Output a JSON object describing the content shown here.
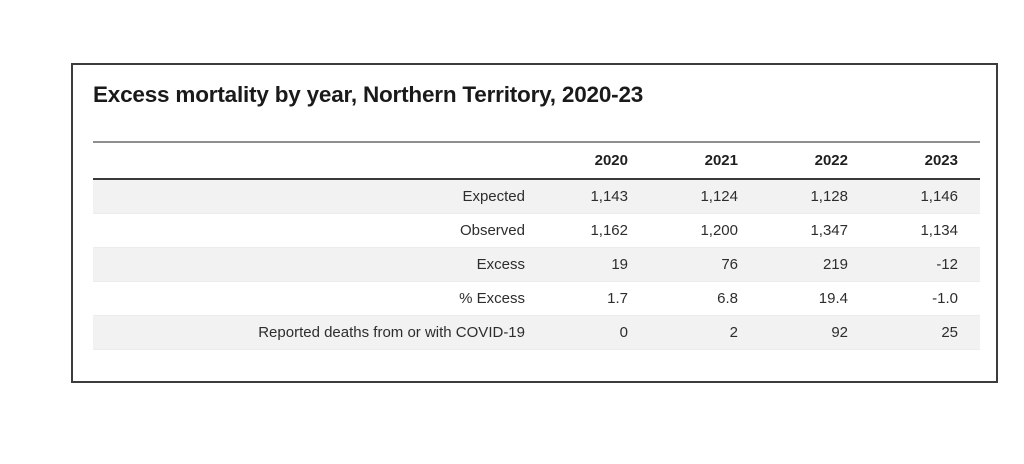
{
  "card": {
    "title": "Excess mortality by year, Northern Territory, 2020-23"
  },
  "chart_data": {
    "type": "table",
    "title": "Excess mortality by year, Northern Territory, 2020-23",
    "columns": [
      "2020",
      "2021",
      "2022",
      "2023"
    ],
    "rows": [
      {
        "label": "Expected",
        "values": [
          "1,143",
          "1,124",
          "1,128",
          "1,146"
        ]
      },
      {
        "label": "Observed",
        "values": [
          "1,162",
          "1,200",
          "1,347",
          "1,134"
        ]
      },
      {
        "label": "Excess",
        "values": [
          "19",
          "76",
          "219",
          "-12"
        ]
      },
      {
        "label": "% Excess",
        "values": [
          "1.7",
          "6.8",
          "19.4",
          "-1.0"
        ]
      },
      {
        "label": "Reported deaths from or with COVID-19",
        "values": [
          "0",
          "2",
          "92",
          "25"
        ]
      }
    ],
    "layout": {
      "striped_rows": "odd",
      "label_alignment": "right",
      "value_alignment": "right",
      "legend": "none",
      "grid": "horizontal-rules-header-only"
    }
  },
  "colors": {
    "card_border": "#3c3c3c",
    "row_stripe": "#f2f2f2",
    "header_rule_top": "#8f8f8f",
    "header_rule_bottom": "#3a3a3a",
    "title_text": "#1a1a1a",
    "body_text": "#2d2d2d"
  }
}
